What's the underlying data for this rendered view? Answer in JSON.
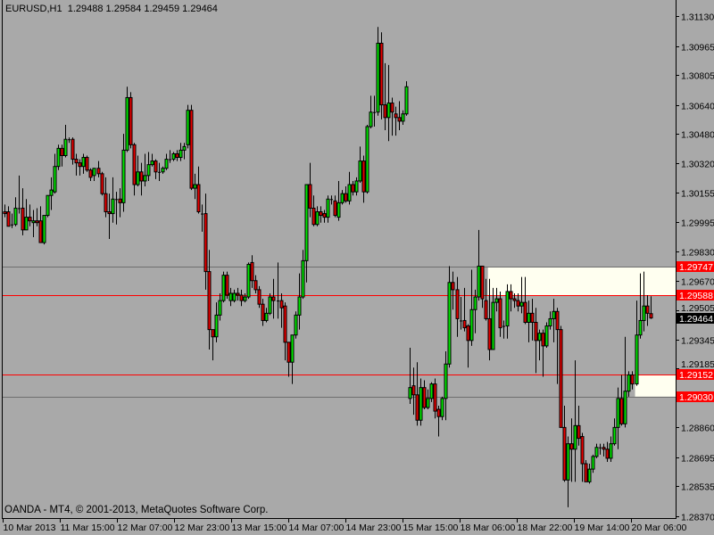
{
  "header": {
    "symbol": "EURUSD,H1",
    "ohlc": "1.29488 1.29584 1.29459 1.29464"
  },
  "footer": {
    "copyright": "OANDA - MT4, © 2001-2013, MetaQuotes Software Corp."
  },
  "colors": {
    "background": "#a9a9a9",
    "bull": "#00e600",
    "bear": "#e60000",
    "zone_fill": "#fffff0",
    "level_red": "#ff0000",
    "level_grey": "#6e6e6e",
    "bid_label": "#000000"
  },
  "price_axis": [
    "1.31130",
    "1.30965",
    "1.30805",
    "1.30640",
    "1.30480",
    "1.30320",
    "1.30155",
    "1.29995",
    "1.29830",
    "1.29670",
    "1.29505",
    "1.29345",
    "1.29185",
    "1.28860",
    "1.28695",
    "1.28535",
    "1.28370"
  ],
  "time_axis": [
    "10 Mar 2013",
    "11 Mar 15:00",
    "12 Mar 07:00",
    "12 Mar 23:00",
    "13 Mar 15:00",
    "14 Mar 07:00",
    "14 Mar 23:00",
    "15 Mar 15:00",
    "18 Mar 06:00",
    "18 Mar 22:00",
    "19 Mar 14:00",
    "20 Mar 06:00"
  ],
  "levels": [
    {
      "price": 1.29747,
      "label": "1.29747",
      "style": "grey"
    },
    {
      "price": 1.29588,
      "label": "1.29588",
      "style": "red"
    },
    {
      "price": 1.29152,
      "label": "1.29152",
      "style": "red"
    },
    {
      "price": 1.2903,
      "label": "1.29030",
      "style": "grey"
    }
  ],
  "bid": {
    "price": 1.29464,
    "label": "1.29464"
  },
  "zones": [
    {
      "top": 1.29747,
      "bottom": 1.29588,
      "start_bar": 135
    },
    {
      "top": 1.29152,
      "bottom": 1.2903,
      "start_bar": 176
    }
  ],
  "chart_data": {
    "type": "candlestick",
    "symbol": "EURUSD",
    "timeframe": "H1",
    "ylim": [
      1.2837,
      1.3113
    ],
    "candles_ohlc": [
      [
        1.3005,
        1.3009,
        1.3002,
        1.3004
      ],
      [
        1.3005,
        1.3008,
        1.2997,
        1.2997
      ],
      [
        1.2998,
        1.3004,
        1.2996,
        1.2998
      ],
      [
        1.2998,
        1.3013,
        1.2997,
        1.3007
      ],
      [
        1.3007,
        1.3025,
        1.3004,
        1.3007
      ],
      [
        1.3007,
        1.3018,
        1.2992,
        1.2995
      ],
      [
        1.2995,
        1.3012,
        1.2995,
        1.3002
      ],
      [
        1.3002,
        1.3009,
        1.2997,
        1.3
      ],
      [
        1.2999,
        1.3006,
        1.2991,
        1.3
      ],
      [
        1.3,
        1.3007,
        1.2997,
        1.2999
      ],
      [
        1.3,
        1.3008,
        1.2988,
        1.2988
      ],
      [
        1.2988,
        1.3003,
        1.2987,
        1.3003
      ],
      [
        1.3003,
        1.3014,
        1.3002,
        1.3014
      ],
      [
        1.3014,
        1.3024,
        1.3006,
        1.3017
      ],
      [
        1.3016,
        1.3037,
        1.3015,
        1.303
      ],
      [
        1.303,
        1.3042,
        1.3028,
        1.304
      ],
      [
        1.304,
        1.3042,
        1.303,
        1.3036
      ],
      [
        1.3036,
        1.3053,
        1.3035,
        1.3045
      ],
      [
        1.3045,
        1.3046,
        1.3043,
        1.3045
      ],
      [
        1.3045,
        1.3046,
        1.3031,
        1.3034
      ],
      [
        1.3034,
        1.3037,
        1.3025,
        1.3032
      ],
      [
        1.3032,
        1.3034,
        1.3025,
        1.303
      ],
      [
        1.303,
        1.3037,
        1.3026,
        1.3035
      ],
      [
        1.3035,
        1.3036,
        1.3027,
        1.3028
      ],
      [
        1.3028,
        1.3029,
        1.3022,
        1.3024
      ],
      [
        1.3025,
        1.3029,
        1.3022,
        1.3029
      ],
      [
        1.3029,
        1.3033,
        1.3024,
        1.3026
      ],
      [
        1.3026,
        1.3027,
        1.3014,
        1.3015
      ],
      [
        1.3015,
        1.3024,
        1.3002,
        1.3005
      ],
      [
        1.3005,
        1.3015,
        1.299,
        1.3004
      ],
      [
        1.3004,
        1.3024,
        1.2999,
        1.3012
      ],
      [
        1.3012,
        1.3016,
        1.2998,
        1.3012
      ],
      [
        1.3012,
        1.3018,
        1.3002,
        1.301
      ],
      [
        1.301,
        1.3048,
        1.3005,
        1.3039
      ],
      [
        1.3039,
        1.3074,
        1.3038,
        1.3068
      ],
      [
        1.3068,
        1.3071,
        1.304,
        1.3042
      ],
      [
        1.3042,
        1.3043,
        1.3014,
        1.302
      ],
      [
        1.302,
        1.3036,
        1.3019,
        1.3027
      ],
      [
        1.3027,
        1.3032,
        1.3014,
        1.3022
      ],
      [
        1.3022,
        1.3037,
        1.3019,
        1.3025
      ],
      [
        1.3025,
        1.3038,
        1.3022,
        1.3031
      ],
      [
        1.3031,
        1.3037,
        1.303,
        1.3033
      ],
      [
        1.3033,
        1.3034,
        1.3023,
        1.3027
      ],
      [
        1.3027,
        1.3032,
        1.3022,
        1.3027
      ],
      [
        1.3027,
        1.303,
        1.3026,
        1.3029
      ],
      [
        1.3029,
        1.3037,
        1.3028,
        1.3034
      ],
      [
        1.3034,
        1.3039,
        1.3032,
        1.3034
      ],
      [
        1.3034,
        1.3038,
        1.3033,
        1.3037
      ],
      [
        1.3037,
        1.3039,
        1.3033,
        1.3035
      ],
      [
        1.3035,
        1.3043,
        1.3033,
        1.3039
      ],
      [
        1.3039,
        1.3043,
        1.3034,
        1.3041
      ],
      [
        1.3042,
        1.3064,
        1.304,
        1.3061
      ],
      [
        1.3061,
        1.3064,
        1.3017,
        1.3018
      ],
      [
        1.3018,
        1.3026,
        1.3012,
        1.302
      ],
      [
        1.302,
        1.303,
        1.3004,
        1.3005
      ],
      [
        1.3004,
        1.3009,
        1.2994,
        1.3004
      ],
      [
        1.3004,
        1.3015,
        1.2962,
        1.2972
      ],
      [
        1.2972,
        1.2984,
        1.2929,
        1.294
      ],
      [
        1.294,
        1.294,
        1.2923,
        1.2936
      ],
      [
        1.2936,
        1.2955,
        1.2933,
        1.2948
      ],
      [
        1.2948,
        1.296,
        1.2945,
        1.2956
      ],
      [
        1.2956,
        1.2972,
        1.2955,
        1.297
      ],
      [
        1.297,
        1.2972,
        1.2957,
        1.2959
      ],
      [
        1.2956,
        1.2963,
        1.2953,
        1.296
      ],
      [
        1.2956,
        1.2962,
        1.2955,
        1.296
      ],
      [
        1.296,
        1.2963,
        1.2956,
        1.2959
      ],
      [
        1.2959,
        1.2962,
        1.2953,
        1.2956
      ],
      [
        1.2956,
        1.296,
        1.2955,
        1.2958
      ],
      [
        1.2958,
        1.2977,
        1.2957,
        1.2976
      ],
      [
        1.2977,
        1.2981,
        1.2963,
        1.2967
      ],
      [
        1.2967,
        1.297,
        1.296,
        1.2962
      ],
      [
        1.2962,
        1.2964,
        1.2952,
        1.2954
      ],
      [
        1.2954,
        1.2957,
        1.2942,
        1.2945
      ],
      [
        1.2945,
        1.2952,
        1.2944,
        1.2949
      ],
      [
        1.2949,
        1.296,
        1.2948,
        1.2958
      ],
      [
        1.2958,
        1.2968,
        1.2946,
        1.2956
      ],
      [
        1.2956,
        1.2977,
        1.2946,
        1.2956
      ],
      [
        1.2956,
        1.296,
        1.2941,
        1.2952
      ],
      [
        1.2953,
        1.2955,
        1.2923,
        1.2933
      ],
      [
        1.2933,
        1.2933,
        1.2914,
        1.2922
      ],
      [
        1.2922,
        1.2937,
        1.291,
        1.2937
      ],
      [
        1.2937,
        1.295,
        1.2935,
        1.2948
      ],
      [
        1.2948,
        1.2971,
        1.294,
        1.2958
      ],
      [
        1.2958,
        1.2984,
        1.2957,
        1.2978
      ],
      [
        1.2978,
        1.302,
        1.2966,
        1.302
      ],
      [
        1.302,
        1.3032,
        1.3002,
        1.3007
      ],
      [
        1.3007,
        1.3014,
        1.2997,
        1.2998
      ],
      [
        1.2998,
        1.3008,
        1.2997,
        1.3005
      ],
      [
        1.3005,
        1.3008,
        1.2999,
        1.3003
      ],
      [
        1.3004,
        1.3006,
        1.2999,
        1.3002
      ],
      [
        1.3002,
        1.3014,
        1.2999,
        1.3012
      ],
      [
        1.3012,
        1.3014,
        1.3009,
        1.3012
      ],
      [
        1.3011,
        1.3014,
        1.3002,
        1.3003
      ],
      [
        1.3002,
        1.3022,
        1.3,
        1.301
      ],
      [
        1.301,
        1.3017,
        1.3009,
        1.3015
      ],
      [
        1.3015,
        1.3019,
        1.301,
        1.3011
      ],
      [
        1.3011,
        1.3027,
        1.3009,
        1.302
      ],
      [
        1.302,
        1.3022,
        1.3014,
        1.3016
      ],
      [
        1.3016,
        1.3024,
        1.3014,
        1.3022
      ],
      [
        1.3022,
        1.3041,
        1.3021,
        1.3033
      ],
      [
        1.3033,
        1.3036,
        1.301,
        1.3016
      ],
      [
        1.3016,
        1.3053,
        1.3015,
        1.3052
      ],
      [
        1.3052,
        1.3069,
        1.3051,
        1.306
      ],
      [
        1.306,
        1.3069,
        1.3052,
        1.306
      ],
      [
        1.306,
        1.3107,
        1.3058,
        1.3098
      ],
      [
        1.3098,
        1.3104,
        1.3056,
        1.3064
      ],
      [
        1.3064,
        1.3087,
        1.305,
        1.3057
      ],
      [
        1.3057,
        1.3086,
        1.3044,
        1.3065
      ],
      [
        1.3065,
        1.3068,
        1.3047,
        1.306
      ],
      [
        1.3059,
        1.3063,
        1.3047,
        1.3057
      ],
      [
        1.3057,
        1.3066,
        1.305,
        1.3055
      ],
      [
        1.3055,
        1.3061,
        1.3053,
        1.3059
      ],
      [
        1.3059,
        1.3077,
        1.3058,
        1.3074
      ],
      [
        1.2902,
        1.293,
        1.2899,
        1.2908
      ],
      [
        1.2909,
        1.2919,
        1.2893,
        1.2904
      ],
      [
        1.2904,
        1.2922,
        1.2887,
        1.289
      ],
      [
        1.289,
        1.2913,
        1.2887,
        1.2908
      ],
      [
        1.2908,
        1.2912,
        1.2896,
        1.2897
      ],
      [
        1.2897,
        1.2907,
        1.2896,
        1.2902
      ],
      [
        1.2902,
        1.2911,
        1.29,
        1.291
      ],
      [
        1.291,
        1.2913,
        1.2891,
        1.2895
      ],
      [
        1.2896,
        1.2898,
        1.2881,
        1.2892
      ],
      [
        1.2892,
        1.2903,
        1.289,
        1.2902
      ],
      [
        1.2902,
        1.2928,
        1.289,
        1.2921
      ],
      [
        1.2921,
        1.2975,
        1.2919,
        1.2966
      ],
      [
        1.2966,
        1.2972,
        1.2951,
        1.2962
      ],
      [
        1.2962,
        1.2969,
        1.2936,
        1.2946
      ],
      [
        1.2945,
        1.2958,
        1.294,
        1.2945
      ],
      [
        1.2945,
        1.2963,
        1.2939,
        1.2941
      ],
      [
        1.2942,
        1.2943,
        1.2919,
        1.2934
      ],
      [
        1.2934,
        1.2973,
        1.2931,
        1.2951
      ],
      [
        1.2951,
        1.2962,
        1.2938,
        1.2958
      ],
      [
        1.2958,
        1.2995,
        1.2956,
        1.2975
      ],
      [
        1.2975,
        1.2975,
        1.2952,
        1.2957
      ],
      [
        1.2956,
        1.2968,
        1.2945,
        1.2946
      ],
      [
        1.2946,
        1.2968,
        1.2923,
        1.2929
      ],
      [
        1.2929,
        1.2963,
        1.2929,
        1.2955
      ],
      [
        1.2955,
        1.2963,
        1.295,
        1.2957
      ],
      [
        1.2957,
        1.2961,
        1.2936,
        1.2941
      ],
      [
        1.2942,
        1.2945,
        1.2935,
        1.2942
      ],
      [
        1.2942,
        1.2965,
        1.2935,
        1.2961
      ],
      [
        1.2961,
        1.2965,
        1.295,
        1.2957
      ],
      [
        1.2957,
        1.296,
        1.2952,
        1.2956
      ],
      [
        1.2956,
        1.296,
        1.295,
        1.2953
      ],
      [
        1.2953,
        1.2969,
        1.2949,
        1.2955
      ],
      [
        1.2955,
        1.2969,
        1.2943,
        1.2944
      ],
      [
        1.2944,
        1.2956,
        1.2933,
        1.2949
      ],
      [
        1.2949,
        1.2957,
        1.2934,
        1.2944
      ],
      [
        1.2944,
        1.2952,
        1.2916,
        1.2934
      ],
      [
        1.2934,
        1.294,
        1.2923,
        1.2938
      ],
      [
        1.2938,
        1.294,
        1.2914,
        1.2931
      ],
      [
        1.2931,
        1.2944,
        1.293,
        1.2942
      ],
      [
        1.2942,
        1.295,
        1.294,
        1.2946
      ],
      [
        1.2946,
        1.2957,
        1.2933,
        1.295
      ],
      [
        1.295,
        1.2952,
        1.291,
        1.294
      ],
      [
        1.294,
        1.2942,
        1.2886,
        1.2886
      ],
      [
        1.2886,
        1.2898,
        1.2856,
        1.2857
      ],
      [
        1.2857,
        1.2881,
        1.2842,
        1.2877
      ],
      [
        1.2877,
        1.2891,
        1.2856,
        1.2874
      ],
      [
        1.2874,
        1.2923,
        1.2856,
        1.2887
      ],
      [
        1.2887,
        1.2898,
        1.2876,
        1.288
      ],
      [
        1.2881,
        1.2883,
        1.2856,
        1.2866
      ],
      [
        1.2866,
        1.2868,
        1.2856,
        1.2856
      ],
      [
        1.2856,
        1.2866,
        1.2855,
        1.2863
      ],
      [
        1.2863,
        1.2871,
        1.2861,
        1.287
      ],
      [
        1.287,
        1.2877,
        1.2869,
        1.2875
      ],
      [
        1.2875,
        1.2877,
        1.2871,
        1.2875
      ],
      [
        1.2875,
        1.2877,
        1.287,
        1.2874
      ],
      [
        1.2874,
        1.2878,
        1.2867,
        1.2869
      ],
      [
        1.2869,
        1.2881,
        1.2867,
        1.2877
      ],
      [
        1.2877,
        1.2891,
        1.2876,
        1.2886
      ],
      [
        1.2886,
        1.2908,
        1.2874,
        1.2902
      ],
      [
        1.2902,
        1.2915,
        1.2887,
        1.2888
      ],
      [
        1.2888,
        1.2936,
        1.2886,
        1.2906
      ],
      [
        1.2906,
        1.2917,
        1.2903,
        1.2915
      ],
      [
        1.2915,
        1.2917,
        1.2907,
        1.291
      ],
      [
        1.291,
        1.2956,
        1.2909,
        1.2937
      ],
      [
        1.2937,
        1.2971,
        1.2935,
        1.2945
      ],
      [
        1.2945,
        1.2972,
        1.2939,
        1.2953
      ],
      [
        1.2953,
        1.2959,
        1.2942,
        1.2949
      ],
      [
        1.29488,
        1.29584,
        1.29459,
        1.29464
      ]
    ]
  }
}
